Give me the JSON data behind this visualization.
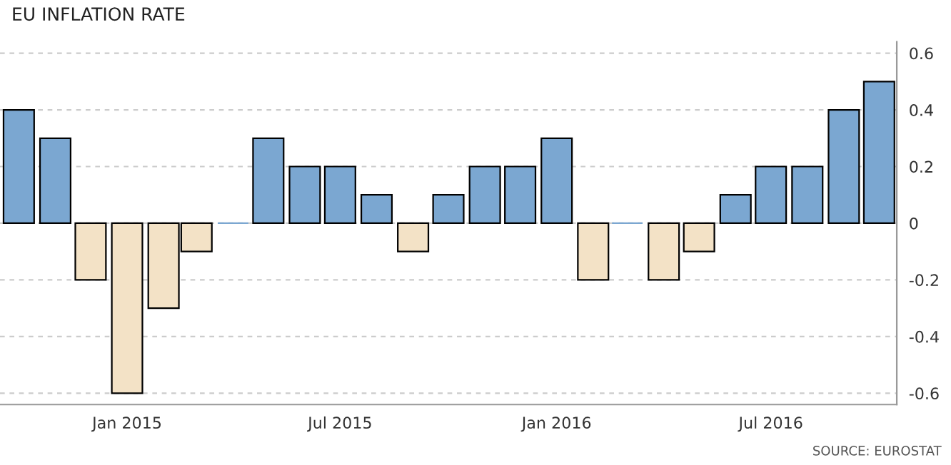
{
  "chart_data": {
    "type": "bar",
    "title": "EU INFLATION RATE",
    "x": [
      "2014-10",
      "2014-11",
      "2014-12",
      "2015-01",
      "2015-02",
      "2015-03",
      "2015-04",
      "2015-05",
      "2015-06",
      "2015-07",
      "2015-08",
      "2015-09",
      "2015-10",
      "2015-11",
      "2015-12",
      "2016-01",
      "2016-02",
      "2016-03",
      "2016-04",
      "2016-05",
      "2016-06",
      "2016-07",
      "2016-08",
      "2016-09",
      "2016-10"
    ],
    "values": [
      0.4,
      0.3,
      -0.2,
      -0.6,
      -0.3,
      -0.1,
      0,
      0.3,
      0.2,
      0.2,
      0.1,
      -0.1,
      0.1,
      0.2,
      0.2,
      0.3,
      -0.2,
      0,
      -0.2,
      -0.1,
      0.1,
      0.2,
      0.2,
      0.4,
      0.5
    ],
    "colors": [
      "#7ba7d1",
      "#7ba7d1",
      "#f3e2c6",
      "#f3e2c6",
      "#f3e2c6",
      "#f3e2c6",
      "#7ba7d1",
      "#7ba7d1",
      "#7ba7d1",
      "#7ba7d1",
      "#7ba7d1",
      "#f3e2c6",
      "#7ba7d1",
      "#7ba7d1",
      "#7ba7d1",
      "#7ba7d1",
      "#f3e2c6",
      "#7ba7d1",
      "#f3e2c6",
      "#f3e2c6",
      "#7ba7d1",
      "#7ba7d1",
      "#7ba7d1",
      "#7ba7d1",
      "#7ba7d1"
    ],
    "xlim": [
      "2014-09-15",
      "2016-10-16"
    ],
    "xticks": [
      {
        "value": "2015-01",
        "label": "Jan 2015"
      },
      {
        "value": "2015-07",
        "label": "Jul 2015"
      },
      {
        "value": "2016-01",
        "label": "Jan 2016"
      },
      {
        "value": "2016-07",
        "label": "Jul 2016"
      }
    ],
    "ylim": [
      -0.64,
      0.64
    ],
    "yticks": [
      -0.6,
      -0.4,
      -0.2,
      0,
      0.2,
      0.4,
      0.6
    ],
    "grid": "y",
    "annotations": [
      "SOURCE: EUROSTAT"
    ]
  }
}
